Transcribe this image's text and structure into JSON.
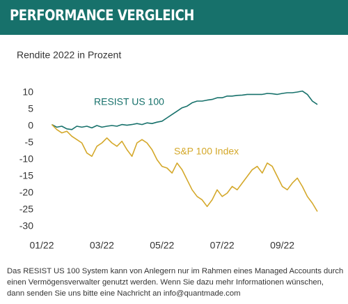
{
  "header": {
    "title": "PERFORMANCE VERGLEICH"
  },
  "chart_data": {
    "type": "line",
    "y_label": "Rendite 2022 in Prozent",
    "categories": [
      "01/22",
      null,
      null,
      null,
      null,
      null,
      null,
      null,
      null,
      null,
      null,
      null,
      "03/22",
      null,
      null,
      null,
      null,
      null,
      null,
      null,
      null,
      null,
      null,
      null,
      "05/22",
      null,
      null,
      null,
      null,
      null,
      null,
      null,
      null,
      null,
      null,
      null,
      "07/22",
      null,
      null,
      null,
      null,
      null,
      null,
      null,
      null,
      null,
      null,
      null,
      "09/22",
      null,
      null,
      null,
      null,
      null,
      null,
      null
    ],
    "series": [
      {
        "name": "RESIST US 100",
        "color": "#17716b",
        "label_pos": [
          135,
          97
        ],
        "values": [
          null,
          null,
          0.5,
          -0.3,
          0,
          -0.8,
          -1,
          0,
          -0.3,
          0,
          -0.5,
          0.2,
          -0.3,
          0,
          0.2,
          0,
          0.5,
          0.3,
          0.5,
          0.8,
          0.5,
          1,
          0.8,
          1.2,
          1.5,
          2.5,
          3.5,
          4.5,
          5.5,
          6,
          7,
          7.5,
          7.5,
          7.8,
          8,
          8.5,
          8.5,
          9,
          9,
          9.2,
          9.3,
          9.5,
          9.5,
          9.5,
          9.5,
          9.8,
          9.7,
          9.5,
          9.8,
          10,
          10,
          10.2,
          10.5,
          9.5,
          7.5,
          6.5
        ]
      },
      {
        "name": "S&P 100 Index",
        "color": "#d4a82a",
        "label_pos": [
          250,
          168
        ],
        "values": [
          null,
          null,
          0.5,
          -1,
          -2,
          -1.5,
          -3,
          -4,
          -5,
          -8,
          -9,
          -6,
          -5,
          -3.5,
          -5,
          -6,
          -4.5,
          -7,
          -9,
          -5,
          -4,
          -5,
          -7,
          -10,
          -12,
          -12.5,
          -14,
          -11,
          -13,
          -16,
          -19,
          -21,
          -22,
          -24,
          -22,
          -19,
          -21,
          -20,
          -18,
          -19,
          -17,
          -15,
          -13,
          -12,
          -14,
          -11,
          -12,
          -15,
          -18,
          -19,
          -17,
          -15.5,
          -18,
          -21,
          -23,
          -25.5
        ]
      }
    ],
    "ylim": [
      -32,
      13
    ],
    "yticks": [
      -30,
      -25,
      -20,
      -15,
      -10,
      -5,
      0,
      5,
      10
    ]
  },
  "footer": {
    "lines": [
      "Das RESIST US 100 System kann von Anlegern nur im Rahmen eines Managed Accounts durch",
      "einen Vermögensverwalter genutzt werden. Wenn Sie dazu mehr Informationen wünschen,",
      "dann senden Sie uns bitte eine Nachricht an info@quantmade.com"
    ]
  }
}
